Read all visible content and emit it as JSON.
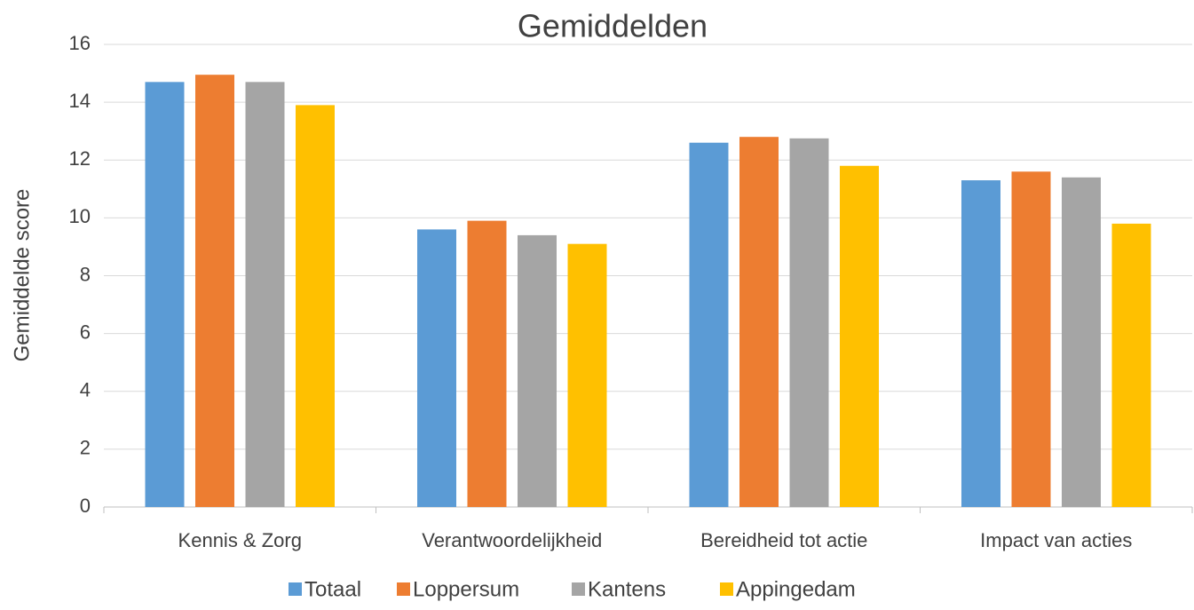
{
  "chart_data": {
    "type": "bar",
    "title": "Gemiddelden",
    "y_label": "Gemiddelde score",
    "categories": [
      "Kennis & Zorg",
      "Verantwoordelijkheid",
      "Bereidheid tot actie",
      "Impact van acties"
    ],
    "series": [
      {
        "name": "Totaal",
        "color": "#5b9bd5",
        "values": [
          14.7,
          9.6,
          12.6,
          11.3
        ]
      },
      {
        "name": "Loppersum",
        "color": "#ed7d31",
        "values": [
          14.95,
          9.9,
          12.8,
          11.6
        ]
      },
      {
        "name": "Kantens",
        "color": "#a5a5a5",
        "values": [
          14.7,
          9.4,
          12.75,
          11.4
        ]
      },
      {
        "name": "Appingedam",
        "color": "#ffc000",
        "values": [
          13.9,
          9.1,
          11.8,
          9.8
        ]
      }
    ],
    "ylim": [
      0,
      16
    ],
    "yticks": [
      0,
      2,
      4,
      6,
      8,
      10,
      12,
      14,
      16
    ],
    "grid": true,
    "legend": "bottom"
  }
}
